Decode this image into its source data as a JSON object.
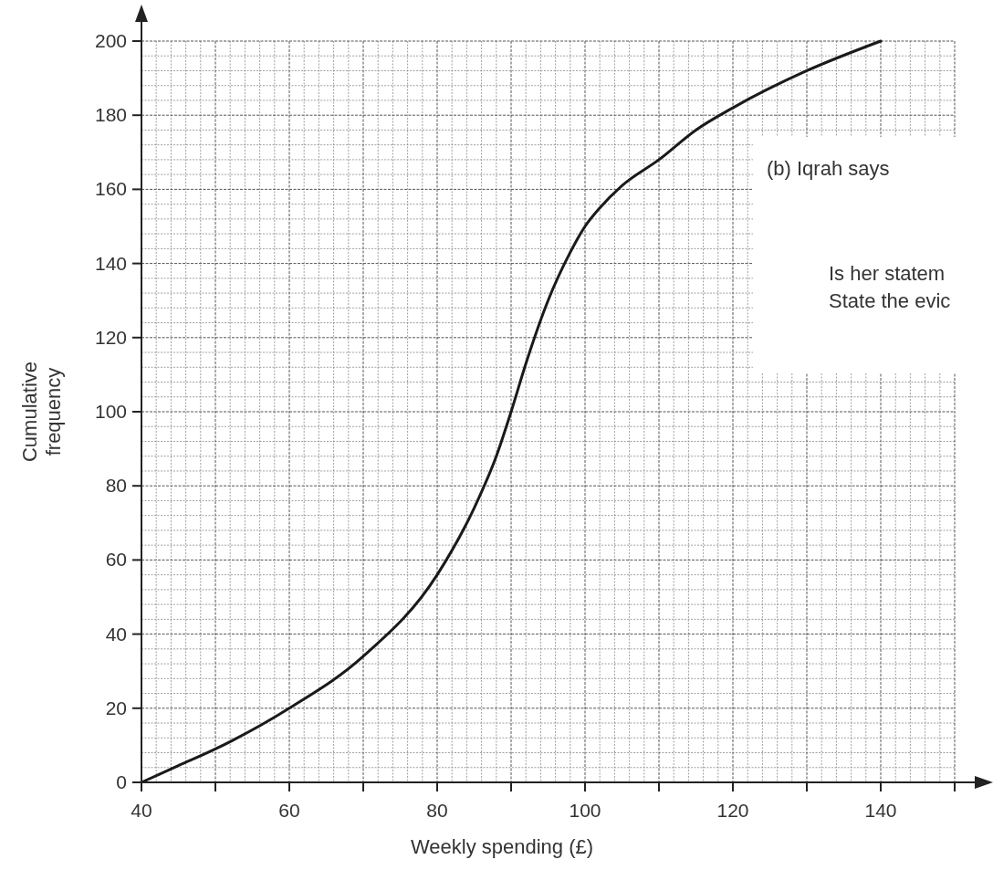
{
  "chart_data": {
    "type": "line",
    "xlabel": "Weekly spending (£)",
    "ylabel": "Cumulative\nfrequency",
    "x": [
      40,
      45,
      50,
      60,
      70,
      80,
      85,
      88,
      90,
      92,
      95,
      98,
      100,
      102,
      105,
      110,
      115,
      120,
      130,
      140
    ],
    "series": [
      {
        "color": "#1a1a1a",
        "values": [
          0,
          4.5,
          9,
          20,
          34,
          56,
          74,
          88,
          100,
          113,
          130,
          143,
          150,
          155,
          161,
          168,
          176,
          182,
          192,
          200
        ]
      }
    ],
    "xlim": [
      40,
      150
    ],
    "xticks": [
      40,
      {
        "value": 50,
        "label": null
      },
      60,
      {
        "value": 70,
        "label": null
      },
      80,
      {
        "value": 90,
        "label": null
      },
      100,
      {
        "value": 110,
        "label": null
      },
      120,
      {
        "value": 130,
        "label": null
      },
      140,
      {
        "value": 150,
        "label": null
      }
    ],
    "ylim": [
      0,
      200
    ],
    "yticks": [
      0,
      20,
      40,
      60,
      80,
      100,
      120,
      140,
      160,
      180,
      200
    ],
    "grid": true,
    "marker": "none",
    "line_style": "solid",
    "annotations": [
      "(b) Iqrah says",
      "Is her statem",
      "State the evic"
    ]
  }
}
